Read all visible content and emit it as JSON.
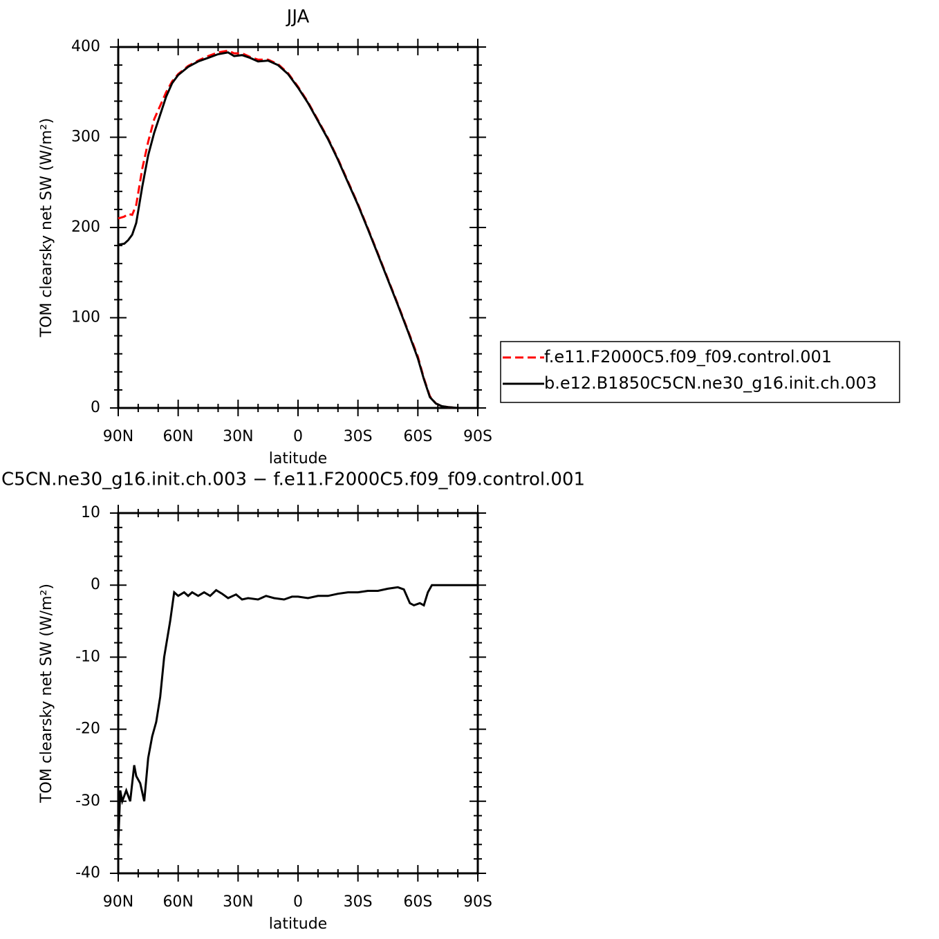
{
  "chart_data": [
    {
      "type": "line",
      "title": "JJA",
      "xlabel": "latitude",
      "ylabel": "TOM clearsky net SW (W/m²)",
      "xlim": [
        90,
        -90
      ],
      "xticks": [
        {
          "value": 90,
          "label": "90N"
        },
        {
          "value": 60,
          "label": "60N"
        },
        {
          "value": 30,
          "label": "30N"
        },
        0,
        {
          "value": -30,
          "label": "30S"
        },
        {
          "value": -60,
          "label": "60S"
        },
        {
          "value": -90,
          "label": "90S"
        }
      ],
      "ylim": [
        0,
        400
      ],
      "yticks": [
        0,
        100,
        200,
        300,
        400
      ],
      "x": [
        90,
        87,
        85,
        83,
        81,
        78,
        75,
        72,
        69,
        66,
        63,
        60,
        55,
        50,
        45,
        40,
        35,
        32,
        28,
        24,
        20,
        15,
        10,
        5,
        0,
        -5,
        -10,
        -15,
        -20,
        -25,
        -30,
        -35,
        -40,
        -45,
        -50,
        -55,
        -60,
        -63,
        -66,
        -69,
        -72,
        -75,
        -80,
        -85,
        -90
      ],
      "series": [
        {
          "name": "f.e11.F2000C5.f09_f09.control.001",
          "color": "#ff0000",
          "dashed": true,
          "values": [
            210,
            212,
            215,
            214,
            225,
            265,
            295,
            320,
            335,
            350,
            362,
            370,
            379,
            385,
            390,
            394,
            396,
            393,
            393,
            389,
            386,
            386,
            381,
            371,
            356,
            339,
            319,
            299,
            276,
            251,
            226,
            199,
            171,
            143,
            115,
            86,
            57,
            33,
            13,
            5,
            2,
            1,
            0,
            0,
            0
          ]
        },
        {
          "name": "b.e12.B1850C5CN.ne30_g16.init.ch.003",
          "color": "#000000",
          "dashed": false,
          "values": [
            181,
            182,
            186,
            192,
            205,
            245,
            280,
            305,
            325,
            345,
            360,
            369,
            378,
            384,
            388,
            392,
            394,
            390,
            391,
            388,
            384,
            385,
            380,
            370,
            355,
            338,
            318,
            298,
            275,
            250,
            225,
            198,
            170,
            142,
            114,
            85,
            55,
            32,
            12,
            5,
            2,
            1,
            0,
            0,
            0
          ]
        }
      ]
    },
    {
      "type": "line",
      "title": "C5CN.ne30_g16.init.ch.003 − f.e11.F2000C5.f09_f09.control.001",
      "xlabel": "latitude",
      "ylabel": "TOM clearsky net SW (W/m²)",
      "xlim": [
        90,
        -90
      ],
      "xticks": [
        {
          "value": 90,
          "label": "90N"
        },
        {
          "value": 60,
          "label": "60N"
        },
        {
          "value": 30,
          "label": "30N"
        },
        0,
        {
          "value": -30,
          "label": "30S"
        },
        {
          "value": -60,
          "label": "60S"
        },
        {
          "value": -90,
          "label": "90S"
        }
      ],
      "ylim": [
        -40,
        10
      ],
      "yticks": [
        -40,
        -30,
        -20,
        -10,
        0,
        10
      ],
      "x": [
        90,
        89,
        88,
        86,
        84,
        82,
        81,
        79,
        77,
        75,
        73,
        71,
        69,
        67,
        64,
        62,
        60,
        57,
        55,
        53,
        50,
        47,
        44,
        41,
        38,
        35,
        31,
        28,
        25,
        20,
        16,
        12,
        7,
        3,
        0,
        -5,
        -10,
        -15,
        -20,
        -25,
        -30,
        -35,
        -40,
        -45,
        -50,
        -53,
        -56,
        -58,
        -61,
        -63,
        -65,
        -67,
        -70,
        -80,
        -90
      ],
      "series": [
        {
          "color": "#000000",
          "dashed": false,
          "values": [
            -36,
            -28.5,
            -30,
            -28.5,
            -30,
            -25,
            -26.5,
            -27.5,
            -30,
            -24,
            -21,
            -19,
            -15.5,
            -10,
            -5,
            -1,
            -1.5,
            -1,
            -1.5,
            -1,
            -1.5,
            -1,
            -1.5,
            -0.7,
            -1.2,
            -1.8,
            -1.3,
            -2,
            -1.8,
            -2,
            -1.5,
            -1.8,
            -2,
            -1.6,
            -1.6,
            -1.8,
            -1.5,
            -1.5,
            -1.2,
            -1,
            -1,
            -0.8,
            -0.8,
            -0.5,
            -0.3,
            -0.6,
            -2.5,
            -2.8,
            -2.5,
            -2.8,
            -1,
            0,
            0,
            0,
            0
          ]
        }
      ]
    }
  ]
}
